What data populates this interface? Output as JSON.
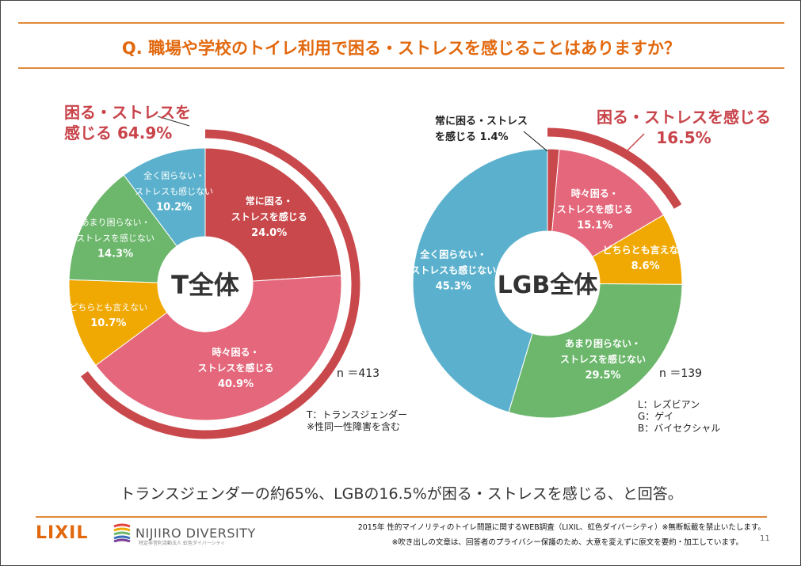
{
  "title": "Q. 職場や学校のトイレ利用で困る・ストレスを感じることはありますか？",
  "chart_data": [
    {
      "type": "pie",
      "center_label": "T全体",
      "categories": [
        "常に困る・ストレスを感じる",
        "時々困る・ストレスを感じる",
        "どちらとも言えない",
        "あまり困らない・ストレスを感じない",
        "全く困らない・ストレスも感じない"
      ],
      "labels": [
        [
          "常に困る・",
          "ストレスを感じる"
        ],
        [
          "時々困る・",
          "ストレスを感じる"
        ],
        [
          "どちらとも言えない"
        ],
        [
          "あまり困らない・",
          "ストレスを感じない"
        ],
        [
          "全く困らない・",
          "ストレスも感じない"
        ]
      ],
      "values": [
        24.0,
        40.9,
        10.7,
        14.3,
        10.2
      ],
      "value_labels": [
        "24.0%",
        "40.9%",
        "10.7%",
        "14.3%",
        "10.2%"
      ],
      "colors": [
        "#C9484B",
        "#E4677B",
        "#F0A902",
        "#6CB76C",
        "#5BB1CD"
      ],
      "highlight": {
        "label": [
          "困る・ストレスを",
          "感じる 64.9%"
        ],
        "value": 64.9
      },
      "n": "n ＝413",
      "notes": [
        "T：トランスジェンダー",
        "※性同一性障害を含む"
      ]
    },
    {
      "type": "pie",
      "center_label": "LGB全体",
      "categories": [
        "常に困る・ストレスを感じる",
        "時々困る・ストレスを感じる",
        "どちらとも言えない",
        "あまり困らない・ストレスを感じない",
        "全く困らない・ストレスも感じない"
      ],
      "labels": [
        [
          "常に困る・ストレス",
          "を感じる 1.4%"
        ],
        [
          "時々困る・",
          "ストレスを感じる"
        ],
        [
          "どちらとも言えない"
        ],
        [
          "あまり困らない・",
          "ストレスを感じない"
        ],
        [
          "全く困らない・",
          "ストレスも感じない"
        ]
      ],
      "values": [
        1.4,
        15.1,
        8.6,
        29.5,
        45.3
      ],
      "value_labels": [
        "1.4%",
        "15.1%",
        "8.6%",
        "29.5%",
        "45.3%"
      ],
      "colors": [
        "#C9484B",
        "#E4677B",
        "#F0A902",
        "#6CB76C",
        "#5BB1CD"
      ],
      "highlight": {
        "label": [
          "困る・ストレスを感じる",
          "16.5%"
        ],
        "value": 16.5
      },
      "n": "n ＝139",
      "notes": [
        "L：レズビアン",
        "G：ゲイ",
        "B：バイセクシャル"
      ]
    }
  ],
  "summary": "トランスジェンダーの約65%、LGBの16.5%が困る・ストレスを感じる、と回答。",
  "footer": {
    "logo_lixil": "LIXIL",
    "logo_nijiiro": "NIJIIRO DIVERSITY",
    "logo_nijiiro_sub": "特定非営利活動法人 虹色ダイバーシティ",
    "source": "2015年 性的マイノリティのトイレ問題に関するWEB調査（LIXIL、虹色ダイバーシティ）※無断転載を禁止いたします。",
    "note": "※吹き出しの文章は、回答者のプライバシー保護のため、大意を変えずに原文を要約・加工しています。",
    "page": "11"
  }
}
